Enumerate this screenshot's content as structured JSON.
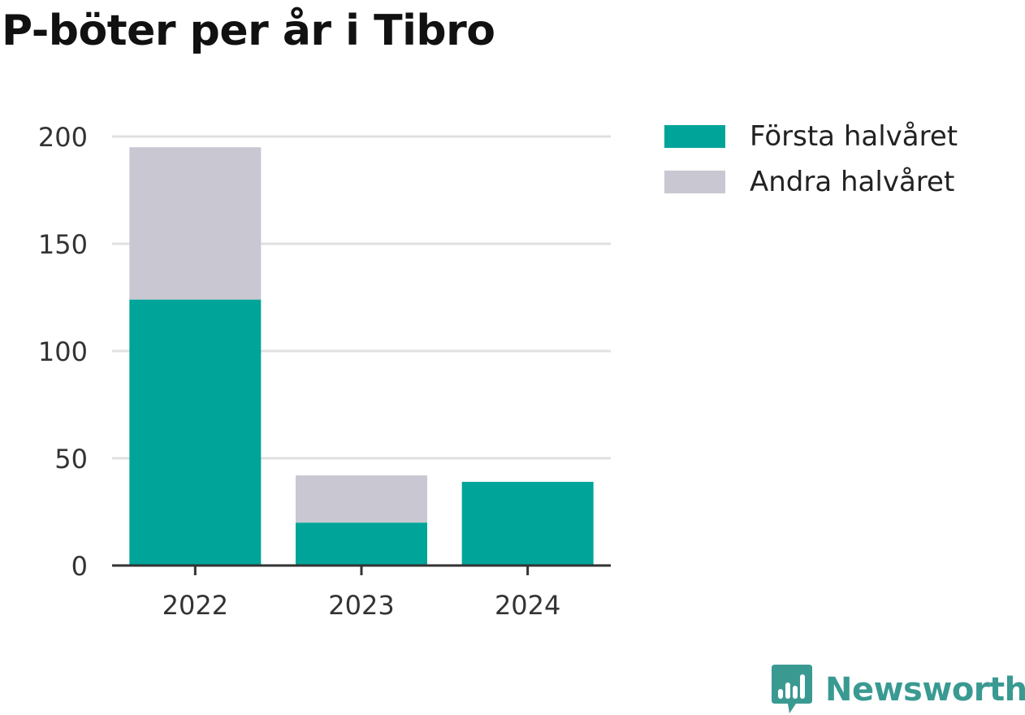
{
  "title": "P-böter per år i Tibro",
  "colors": {
    "first_half": "#00a499",
    "second_half": "#c8c7d2",
    "grid": "#e0e0e0",
    "axis": "#333333",
    "brand": "#3a9a92"
  },
  "legend": {
    "items": [
      {
        "label": "Första halvåret",
        "color": "#00a499"
      },
      {
        "label": "Andra halvåret",
        "color": "#c8c7d2"
      }
    ]
  },
  "brand": {
    "name": "Newsworthy",
    "icon": "bar-chart-speech-bubble-icon"
  },
  "chart_data": {
    "type": "bar",
    "stacked": true,
    "title": "P-böter per år i Tibro",
    "categories": [
      "2022",
      "2023",
      "2024"
    ],
    "series": [
      {
        "name": "Första halvåret",
        "color": "#00a499",
        "values": [
          124,
          20,
          39
        ]
      },
      {
        "name": "Andra halvåret",
        "color": "#c8c7d2",
        "values": [
          71,
          22,
          0
        ]
      }
    ],
    "ylim": [
      0,
      200
    ],
    "yticks": [
      0,
      50,
      100,
      150,
      200
    ],
    "grid": true,
    "legend_position": "right"
  }
}
